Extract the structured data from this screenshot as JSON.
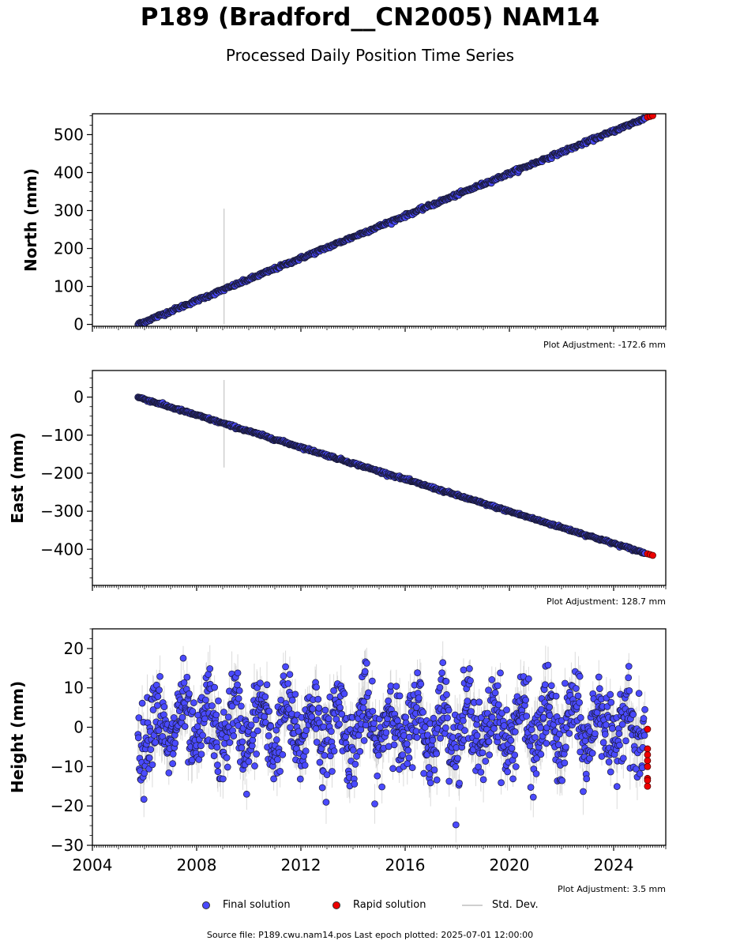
{
  "header": {
    "title": "P189 (Bradford__CN2005) NAM14",
    "subtitle": "Processed Daily Position Time Series"
  },
  "footer": {
    "source": "Source file: P189.cwu.nam14.pos  Last epoch plotted: 2025-07-01 12:00:00"
  },
  "legend": {
    "final": "Final solution",
    "rapid": "Rapid solution",
    "stddev": "Std. Dev."
  },
  "colors": {
    "final_fill": "#4a4aff",
    "final_edge": "#1a1a3a",
    "rapid_fill": "#ee0000",
    "stddev": "#bdbdbd"
  },
  "chart_data": [
    {
      "type": "scatter",
      "id": "north",
      "ylabel": "North (mm)",
      "ylim": [
        -5,
        555
      ],
      "yticks": [
        0,
        100,
        200,
        300,
        400,
        500
      ],
      "xlim": [
        2004.0,
        2026.0
      ],
      "plot_adjustment": "Plot Adjustment: -172.6 mm",
      "series": [
        {
          "name": "Final solution",
          "trend": {
            "start": [
              2005.75,
              0
            ],
            "end": [
              2025.2,
              543
            ]
          }
        },
        {
          "name": "Rapid solution",
          "x": [
            2025.3,
            2025.4,
            2025.5
          ],
          "y": [
            546,
            548,
            550
          ]
        },
        {
          "name": "Std. Dev.",
          "outlier_bar": {
            "x": 2009.05,
            "y": [
              0,
              305
            ]
          }
        }
      ]
    },
    {
      "type": "scatter",
      "id": "east",
      "ylabel": "East (mm)",
      "ylim": [
        -495,
        70
      ],
      "yticks": [
        0,
        -100,
        -200,
        -300,
        -400
      ],
      "xlim": [
        2004.0,
        2026.0
      ],
      "plot_adjustment": "Plot Adjustment: 128.7 mm",
      "series": [
        {
          "name": "Final solution",
          "trend": {
            "start": [
              2005.75,
              0
            ],
            "end": [
              2025.2,
              -410
            ]
          }
        },
        {
          "name": "Rapid solution",
          "x": [
            2025.3,
            2025.4,
            2025.5
          ],
          "y": [
            -412,
            -414,
            -416
          ]
        },
        {
          "name": "Std. Dev.",
          "outlier_bar": {
            "x": 2009.05,
            "y": [
              -185,
              45
            ]
          }
        }
      ]
    },
    {
      "type": "scatter",
      "id": "height",
      "ylabel": "Height (mm)",
      "ylim": [
        -30,
        25
      ],
      "yticks": [
        20,
        10,
        0,
        -10,
        -20,
        -30
      ],
      "xlim": [
        2004.0,
        2026.0
      ],
      "xticks": [
        2004,
        2008,
        2012,
        2016,
        2020,
        2024
      ],
      "plot_adjustment": "Plot Adjustment: 3.5 mm",
      "series": [
        {
          "name": "Final solution",
          "range": {
            "x": [
              2005.75,
              2025.2
            ],
            "y_mean": 0,
            "seasonal_amplitude": 6,
            "noise": 5,
            "min": -25,
            "max": 22
          }
        },
        {
          "name": "Rapid solution",
          "x": [
            2025.3,
            2025.3,
            2025.3,
            2025.3,
            2025.3,
            2025.3,
            2025.3,
            2025.3
          ],
          "y": [
            -0.5,
            -5.5,
            -7,
            -8.5,
            -10,
            -13,
            -13.5,
            -15
          ]
        }
      ]
    }
  ]
}
